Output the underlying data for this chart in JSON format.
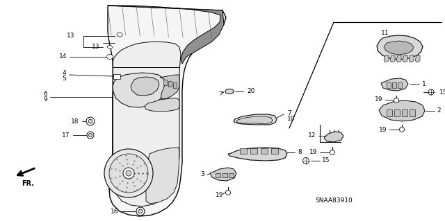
{
  "bg_color": "#ffffff",
  "line_color": "#000000",
  "diagram_code": "SNAA83910",
  "figsize": [
    6.4,
    3.19
  ],
  "dpi": 100,
  "gray_light": "#d8d8d8",
  "gray_mid": "#b0b0b0",
  "gray_dark": "#888888"
}
